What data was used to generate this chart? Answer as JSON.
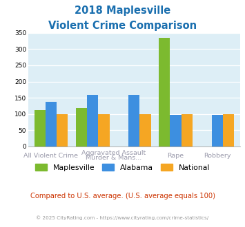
{
  "title_line1": "2018 Maplesville",
  "title_line2": "Violent Crime Comparison",
  "title_color": "#1a6faf",
  "maplesville": [
    113,
    118,
    0,
    335,
    0
  ],
  "alabama": [
    137,
    158,
    158,
    97,
    97
  ],
  "national": [
    100,
    100,
    100,
    100,
    100
  ],
  "color_maplesville": "#7cba2f",
  "color_alabama": "#3d8fe0",
  "color_national": "#f5a623",
  "ylim": [
    0,
    350
  ],
  "yticks": [
    0,
    50,
    100,
    150,
    200,
    250,
    300,
    350
  ],
  "bg_color": "#ddeef6",
  "label_color": "#9999aa",
  "footer_text": "Compared to U.S. average. (U.S. average equals 100)",
  "footer_color": "#cc3300",
  "copyright_text": "© 2025 CityRating.com - https://www.cityrating.com/crime-statistics/",
  "copyright_color": "#999999"
}
